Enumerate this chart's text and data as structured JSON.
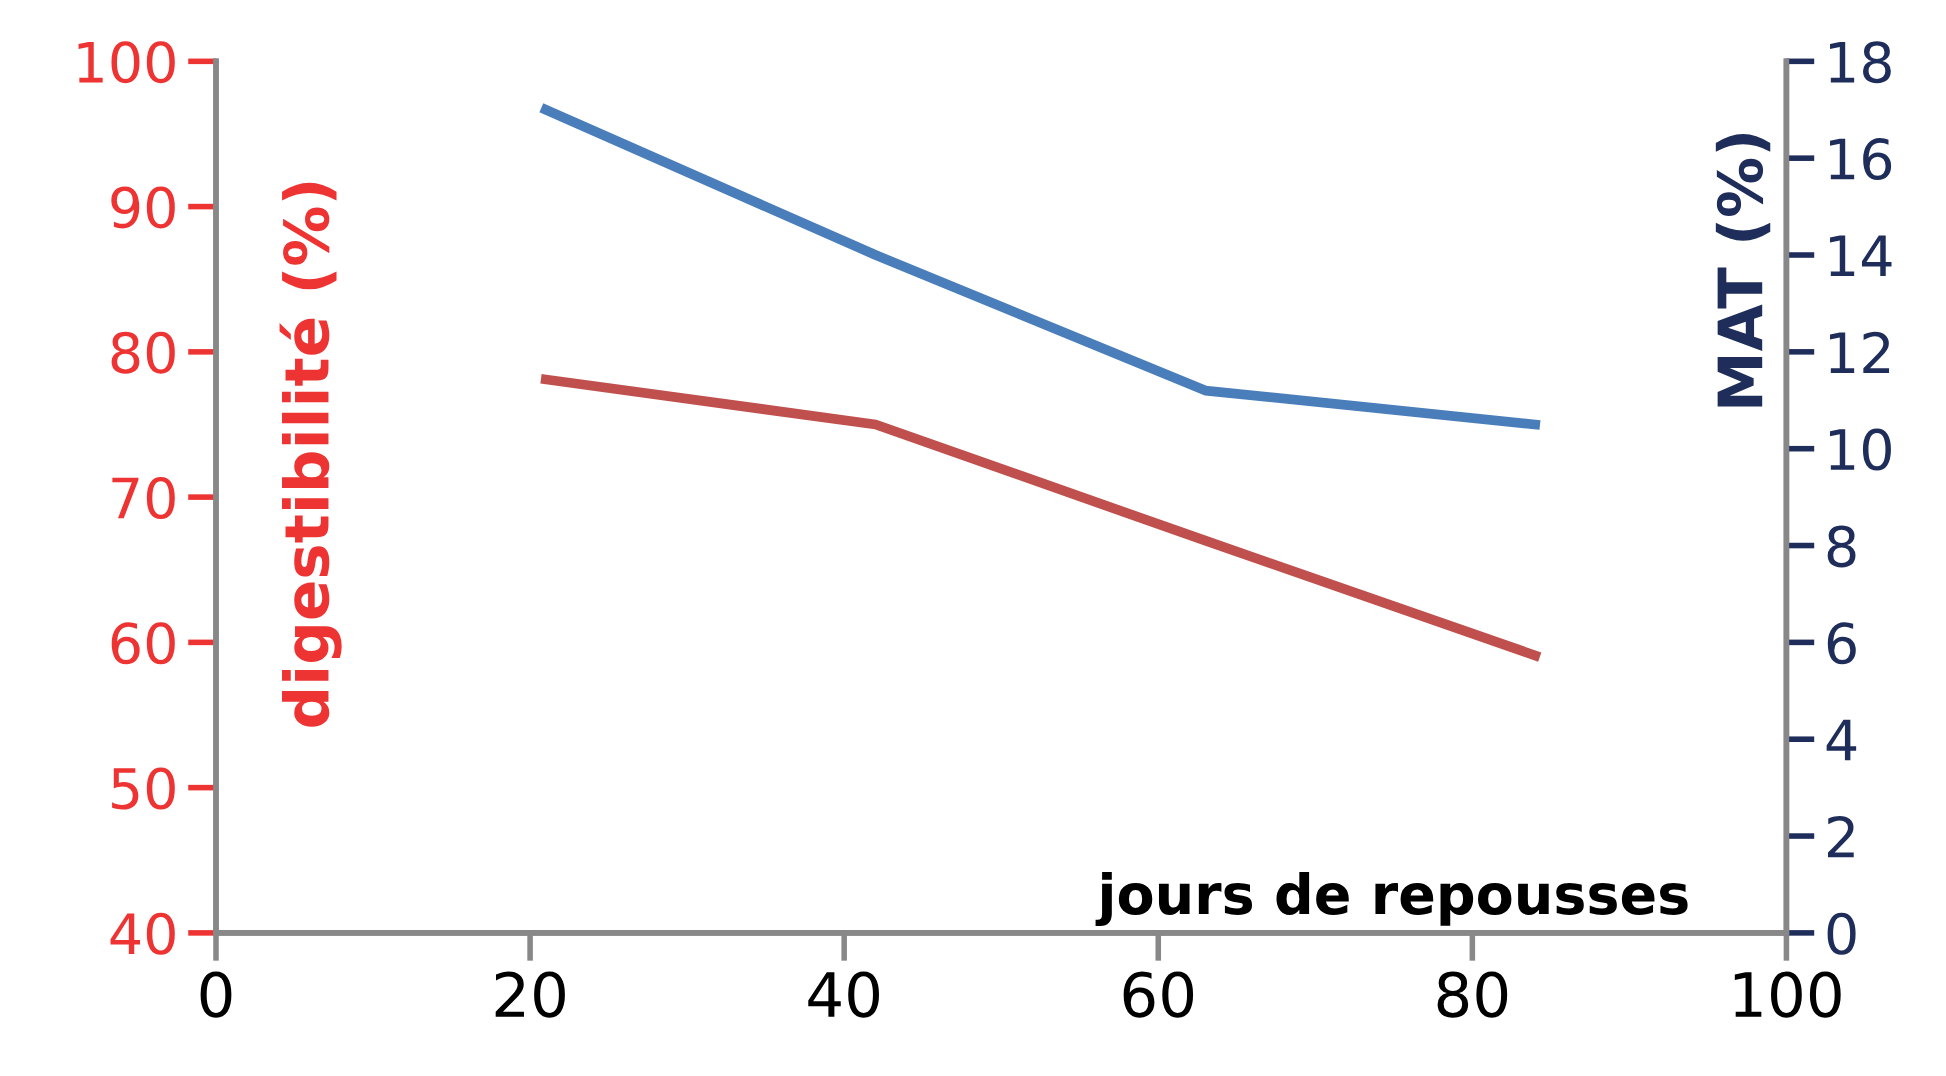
{
  "chart_data": {
    "type": "line",
    "xlabel": "jours de repousses",
    "ylabel": "digestibilité (%)",
    "y2label": "MAT (%)",
    "x": [
      21,
      42,
      63,
      84
    ],
    "series": [
      {
        "color": "#c0504d",
        "values": [
          78.1,
          75.0,
          67.0,
          59.1
        ]
      },
      {
        "color": "#4a7ebb",
        "values": [
          17.0,
          14.0,
          11.2,
          10.5
        ],
        "axis": "y2"
      }
    ],
    "xlim": [
      0,
      100
    ],
    "xticks": [
      0,
      20,
      40,
      60,
      80,
      100
    ],
    "ylim": [
      40,
      100
    ],
    "yticks": [
      40,
      50,
      60,
      70,
      80,
      90,
      100
    ],
    "y2lim": [
      0,
      18
    ],
    "y2ticks": [
      0,
      2,
      4,
      6,
      8,
      10,
      12,
      14,
      16,
      18
    ],
    "grid": false,
    "legend": false,
    "marker": "none",
    "line_style": "solid"
  }
}
